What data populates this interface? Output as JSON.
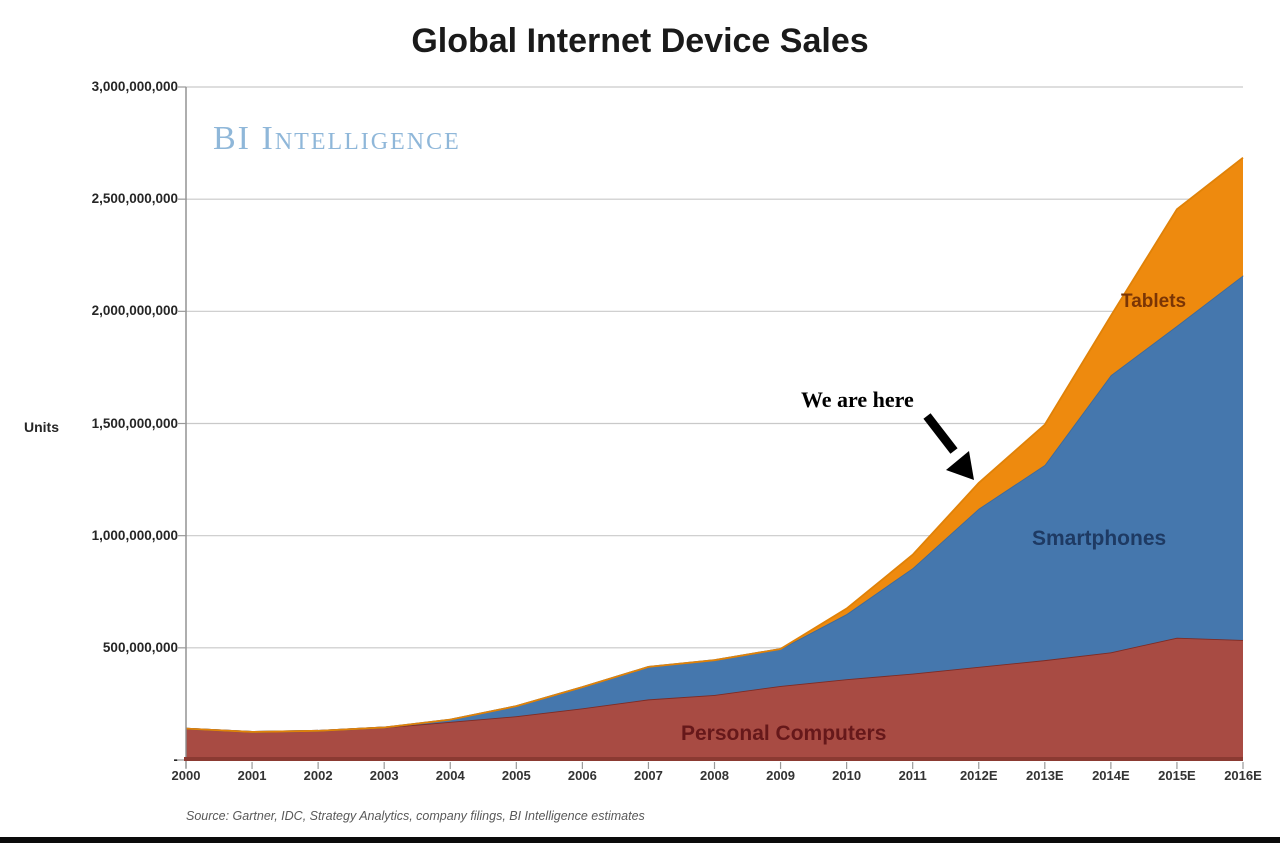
{
  "title": "Global Internet Device Sales",
  "watermark": {
    "text": "BI Intelligence",
    "color": "#8fb7d9"
  },
  "source_note": "Source: Gartner, IDC, Strategy Analytics, company filings, BI Intelligence estimates",
  "annotation": {
    "text": "We are here",
    "points_to": "2012E"
  },
  "y_axis": {
    "title": "Units",
    "ticks": [
      {
        "label": "3,000,000,000",
        "value_millions": 3000
      },
      {
        "label": "2,500,000,000",
        "value_millions": 2500
      },
      {
        "label": "2,000,000,000",
        "value_millions": 2000
      },
      {
        "label": "1,500,000,000",
        "value_millions": 1500
      },
      {
        "label": "1,000,000,000",
        "value_millions": 1000
      },
      {
        "label": "500,000,000",
        "value_millions": 500
      },
      {
        "label": "-",
        "value_millions": 0
      }
    ]
  },
  "chart_data": {
    "type": "area",
    "stacked": true,
    "title": "Global Internet Device Sales",
    "ylabel": "Units",
    "xlabel": "",
    "ylim_units": [
      0,
      3000000000
    ],
    "grid": true,
    "legend_position": "inline-labels",
    "value_unit": "millions of units (read from chart)",
    "x": [
      "2000",
      "2001",
      "2002",
      "2003",
      "2004",
      "2005",
      "2006",
      "2007",
      "2008",
      "2009",
      "2010",
      "2011",
      "2012E",
      "2013E",
      "2014E",
      "2015E",
      "2016E"
    ],
    "series": [
      {
        "name": "Personal Computers",
        "color": "#a84b43",
        "label_color": "#66181a",
        "top_stroke": "#7e2b24",
        "values_millions": [
          140,
          125,
          130,
          145,
          170,
          195,
          230,
          270,
          290,
          330,
          360,
          385,
          415,
          445,
          480,
          545,
          535
        ]
      },
      {
        "name": "Smartphones",
        "color": "#4577ad",
        "label_color": "#1e3a63",
        "top_stroke": "#3c6a9d",
        "values_millions": [
          0,
          0,
          0,
          0,
          10,
          45,
          95,
          145,
          155,
          165,
          290,
          470,
          705,
          870,
          1235,
          1390,
          1625
        ]
      },
      {
        "name": "Tablets",
        "color": "#ee8a0e",
        "label_color": "#7a3505",
        "top_stroke": "#e08208",
        "values_millions": [
          0,
          0,
          0,
          0,
          0,
          0,
          0,
          0,
          0,
          0,
          25,
          60,
          115,
          180,
          265,
          520,
          525
        ]
      }
    ],
    "colors": {
      "grid": "#c9c9c9",
      "axis": "#8c8c8c",
      "x_baseline": "#8b3a32",
      "tick": "#999999"
    }
  }
}
